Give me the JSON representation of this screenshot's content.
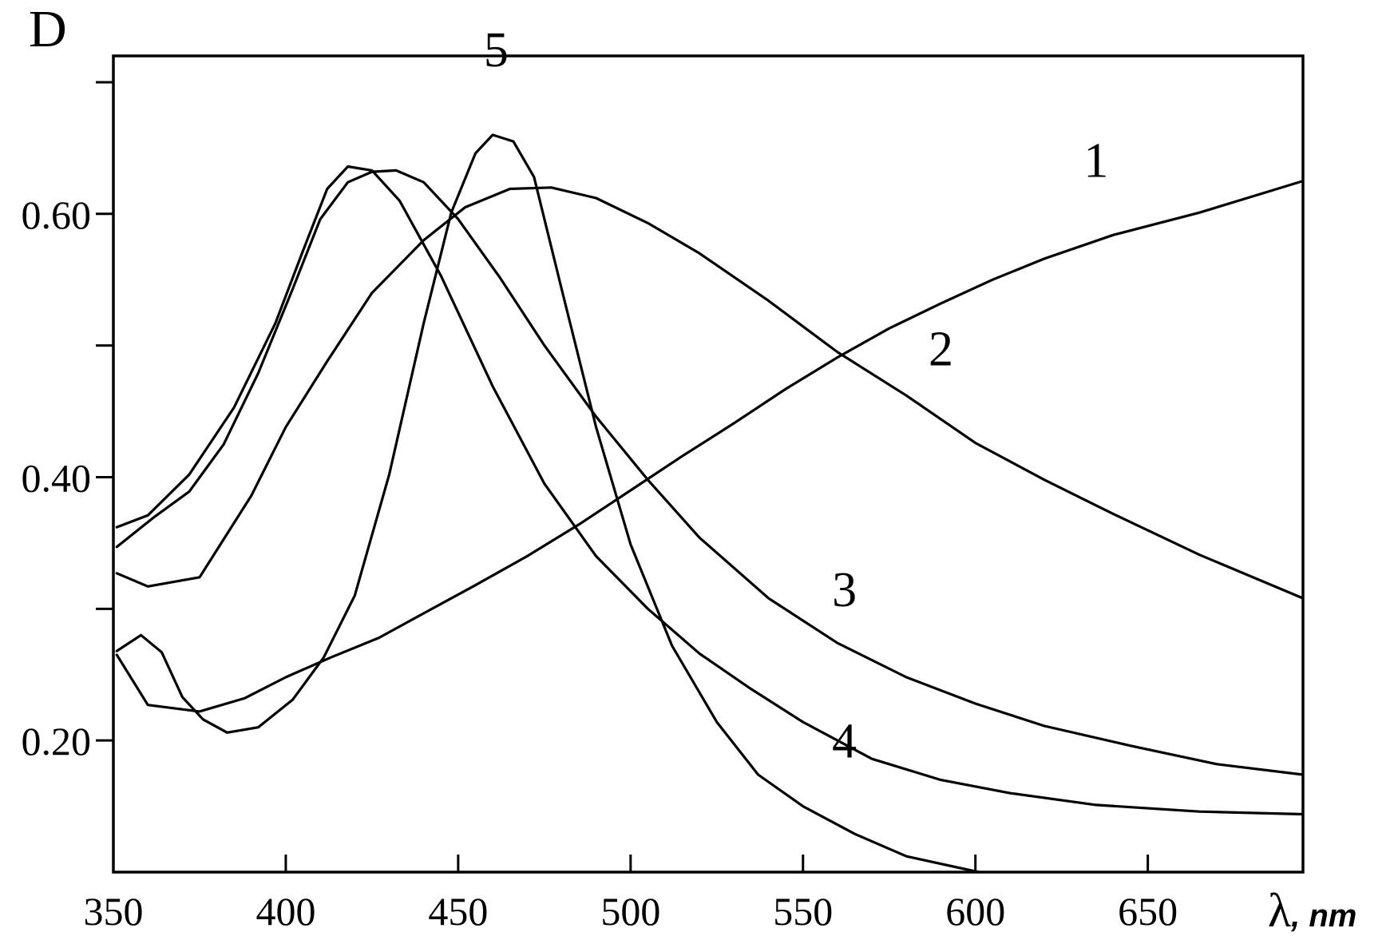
{
  "chart_data": {
    "type": "line",
    "title": "",
    "ylabel": "D",
    "xlabel_symbol": "λ",
    "xlabel_unit": ", nm",
    "xlim": [
      350,
      695
    ],
    "ylim": [
      0.1,
      0.72
    ],
    "x_ticks": [
      350,
      400,
      450,
      500,
      550,
      600,
      650
    ],
    "x_tick_labels": [
      "350",
      "400",
      "450",
      "500",
      "550",
      "600",
      "650"
    ],
    "y_ticks": [
      0.2,
      0.3,
      0.4,
      0.5,
      0.6,
      0.7
    ],
    "y_tick_labels": [
      "0.20",
      "",
      "0.40",
      "",
      "0.60",
      ""
    ],
    "grid": false,
    "legend": "none",
    "series": [
      {
        "name": "1",
        "x": [
          351,
          360,
          375,
          388,
          400,
          413,
          427,
          441,
          455,
          470,
          485,
          500,
          515,
          530,
          545,
          560,
          575,
          590,
          605,
          620,
          640,
          665,
          695
        ],
        "y": [
          0.265,
          0.227,
          0.222,
          0.232,
          0.248,
          0.263,
          0.278,
          0.298,
          0.318,
          0.34,
          0.364,
          0.39,
          0.416,
          0.441,
          0.467,
          0.491,
          0.513,
          0.532,
          0.55,
          0.566,
          0.584,
          0.601,
          0.625
        ]
      },
      {
        "name": "2",
        "x": [
          351,
          360,
          375,
          390,
          400,
          412,
          425,
          440,
          452,
          465,
          477,
          490,
          505,
          520,
          540,
          560,
          580,
          600,
          620,
          640,
          665,
          695
        ],
        "y": [
          0.327,
          0.317,
          0.324,
          0.386,
          0.438,
          0.488,
          0.54,
          0.58,
          0.605,
          0.619,
          0.62,
          0.612,
          0.593,
          0.57,
          0.534,
          0.495,
          0.462,
          0.426,
          0.398,
          0.372,
          0.341,
          0.308
        ]
      },
      {
        "name": "3",
        "x": [
          351,
          362,
          372,
          382,
          392,
          402,
          410,
          418,
          425,
          432,
          440,
          450,
          462,
          475,
          490,
          505,
          520,
          540,
          560,
          580,
          600,
          620,
          645,
          670,
          695
        ],
        "y": [
          0.347,
          0.37,
          0.389,
          0.425,
          0.479,
          0.543,
          0.596,
          0.624,
          0.632,
          0.633,
          0.624,
          0.596,
          0.552,
          0.5,
          0.446,
          0.398,
          0.354,
          0.308,
          0.274,
          0.248,
          0.228,
          0.211,
          0.196,
          0.182,
          0.174
        ]
      },
      {
        "name": "4",
        "x": [
          351,
          360,
          372,
          385,
          397,
          405,
          412,
          418,
          425,
          433,
          445,
          460,
          475,
          490,
          505,
          520,
          535,
          550,
          570,
          590,
          610,
          635,
          665,
          695
        ],
        "y": [
          0.362,
          0.371,
          0.402,
          0.453,
          0.517,
          0.572,
          0.619,
          0.636,
          0.633,
          0.61,
          0.553,
          0.469,
          0.395,
          0.34,
          0.3,
          0.266,
          0.239,
          0.214,
          0.186,
          0.17,
          0.16,
          0.151,
          0.146,
          0.144
        ]
      },
      {
        "name": "5",
        "x": [
          351,
          358,
          364,
          370,
          376,
          383,
          392,
          402,
          411,
          420,
          430,
          440,
          448,
          455,
          460,
          466,
          472,
          480,
          490,
          500,
          512,
          525,
          537,
          550,
          565,
          580,
          601
        ],
        "y": [
          0.268,
          0.28,
          0.267,
          0.233,
          0.216,
          0.206,
          0.21,
          0.231,
          0.263,
          0.31,
          0.402,
          0.517,
          0.601,
          0.646,
          0.66,
          0.655,
          0.628,
          0.543,
          0.438,
          0.349,
          0.272,
          0.214,
          0.174,
          0.15,
          0.129,
          0.112,
          0.1
        ]
      }
    ],
    "annotations": [
      {
        "text": "1",
        "x": 635,
        "y": 0.628
      },
      {
        "text": "2",
        "x": 590,
        "y": 0.485
      },
      {
        "text": "3",
        "x": 562,
        "y": 0.302
      },
      {
        "text": "4",
        "x": 562,
        "y": 0.187
      },
      {
        "text": "5",
        "x": 461,
        "y": 0.712
      }
    ]
  }
}
